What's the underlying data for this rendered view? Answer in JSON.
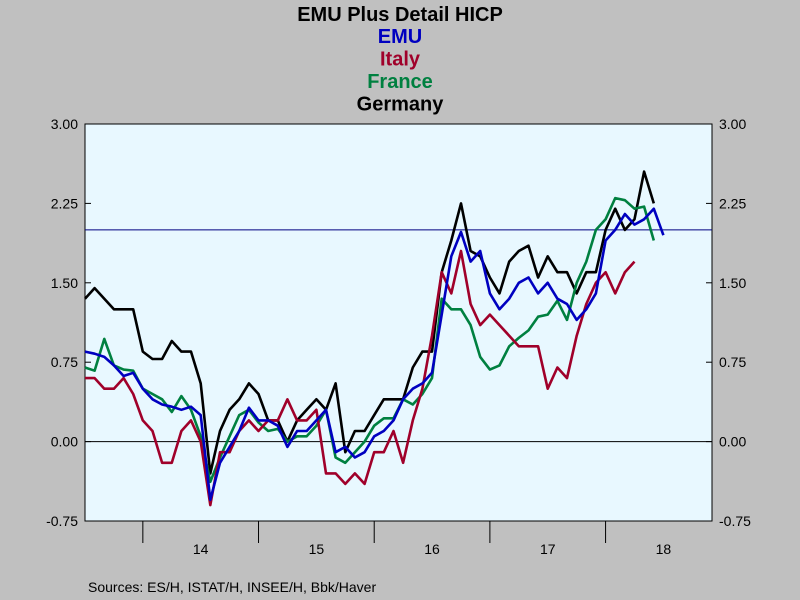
{
  "chart_data": {
    "type": "line",
    "title": "EMU Plus Detail HICP",
    "xlabel": "",
    "ylabel": "",
    "ylim": [
      -0.75,
      3.0
    ],
    "y_ticks": [
      "3.00",
      "2.25",
      "1.50",
      "0.75",
      "0.00",
      "-0.75"
    ],
    "y_tick_values": [
      3.0,
      2.25,
      1.5,
      0.75,
      0.0,
      -0.75
    ],
    "x_range": [
      2013.5,
      2018.92
    ],
    "x_ticks": [
      {
        "label": "14",
        "pos": 2014.5
      },
      {
        "label": "15",
        "pos": 2015.5
      },
      {
        "label": "16",
        "pos": 2016.5
      },
      {
        "label": "17",
        "pos": 2017.5
      },
      {
        "label": "18",
        "pos": 2018.5
      }
    ],
    "year_boundaries": [
      2014,
      2015,
      2016,
      2017,
      2018
    ],
    "reference_lines": [
      {
        "value": 2.0,
        "color": "#000080"
      },
      {
        "value": 0.0,
        "color": "#000000"
      }
    ],
    "grid": false,
    "legend_placement": "top-center",
    "x_start": "2013-07",
    "x_step": "month",
    "series": [
      {
        "name": "EMU",
        "color": "#0000C0",
        "values": [
          0.85,
          0.83,
          0.8,
          0.72,
          0.62,
          0.65,
          0.5,
          0.4,
          0.35,
          0.33,
          0.3,
          0.33,
          0.25,
          -0.55,
          -0.2,
          -0.05,
          0.1,
          0.32,
          0.2,
          0.2,
          0.15,
          -0.05,
          0.1,
          0.1,
          0.2,
          0.3,
          -0.1,
          -0.05,
          -0.15,
          -0.1,
          0.05,
          0.1,
          0.2,
          0.4,
          0.5,
          0.55,
          0.65,
          1.2,
          1.75,
          1.98,
          1.7,
          1.8,
          1.4,
          1.25,
          1.35,
          1.5,
          1.55,
          1.4,
          1.5,
          1.35,
          1.3,
          1.15,
          1.25,
          1.4,
          1.9,
          2.0,
          2.15,
          2.05,
          2.1,
          2.2,
          1.95
        ]
      },
      {
        "name": "Italy",
        "color": "#A0002A",
        "values": [
          0.6,
          0.6,
          0.5,
          0.5,
          0.6,
          0.45,
          0.2,
          0.1,
          -0.2,
          -0.2,
          0.1,
          0.2,
          0.0,
          -0.6,
          -0.1,
          -0.1,
          0.1,
          0.2,
          0.1,
          0.2,
          0.2,
          0.4,
          0.2,
          0.2,
          0.3,
          -0.3,
          -0.3,
          -0.4,
          -0.3,
          -0.4,
          -0.1,
          -0.1,
          0.1,
          -0.2,
          0.2,
          0.5,
          1.0,
          1.6,
          1.4,
          1.8,
          1.3,
          1.1,
          1.2,
          1.1,
          1.0,
          0.9,
          0.9,
          0.9,
          0.5,
          0.7,
          0.6,
          1.0,
          1.3,
          1.5,
          1.6,
          1.4,
          1.6,
          1.7
        ]
      },
      {
        "name": "France",
        "color": "#008040",
        "values": [
          0.7,
          0.67,
          0.97,
          0.72,
          0.68,
          0.67,
          0.5,
          0.45,
          0.4,
          0.28,
          0.43,
          0.3,
          0.05,
          -0.38,
          -0.15,
          0.05,
          0.25,
          0.3,
          0.18,
          0.1,
          0.12,
          0.0,
          0.05,
          0.05,
          0.15,
          0.3,
          -0.15,
          -0.2,
          -0.1,
          0.0,
          0.15,
          0.22,
          0.22,
          0.4,
          0.35,
          0.45,
          0.6,
          1.35,
          1.25,
          1.25,
          1.1,
          0.8,
          0.68,
          0.72,
          0.9,
          0.98,
          1.05,
          1.18,
          1.2,
          1.33,
          1.15,
          1.5,
          1.7,
          2.0,
          2.1,
          2.3,
          2.28,
          2.2,
          2.22,
          1.9
        ]
      },
      {
        "name": "Germany",
        "color": "#000000",
        "values": [
          1.35,
          1.45,
          1.35,
          1.25,
          1.25,
          1.25,
          0.85,
          0.78,
          0.78,
          0.95,
          0.85,
          0.85,
          0.55,
          -0.3,
          0.1,
          0.3,
          0.4,
          0.55,
          0.45,
          0.2,
          0.2,
          0.0,
          0.2,
          0.3,
          0.4,
          0.3,
          0.55,
          -0.1,
          0.1,
          0.1,
          0.25,
          0.4,
          0.4,
          0.4,
          0.7,
          0.85,
          0.85,
          1.6,
          1.9,
          2.25,
          1.8,
          1.75,
          1.55,
          1.4,
          1.7,
          1.8,
          1.85,
          1.55,
          1.75,
          1.6,
          1.6,
          1.4,
          1.6,
          1.6,
          2.0,
          2.2,
          2.0,
          2.1,
          2.55,
          2.25
        ]
      }
    ],
    "source_note": "Sources:  ES/H, ISTAT/H, INSEE/H, Bbk/Haver"
  }
}
